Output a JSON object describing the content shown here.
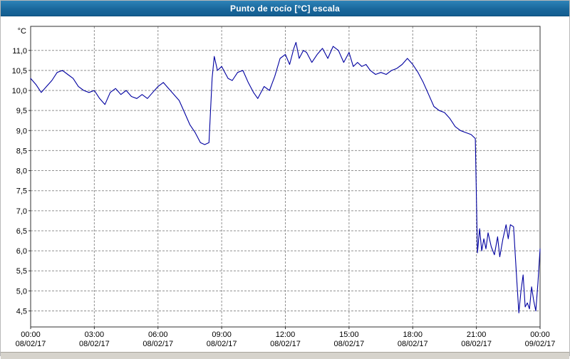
{
  "window": {
    "title": "Punto de rocío [°C] escala"
  },
  "colors": {
    "title_bar": "#1b6ca3",
    "title_text": "#ffffff",
    "line": "#0000a0",
    "grid": "#909090",
    "plot_border": "#303030",
    "background": "#ffffff",
    "scrollbar": "#d6d3cc"
  },
  "chart_data": {
    "type": "line",
    "title": "Punto de rocío [°C] escala",
    "ylabel": "°C",
    "xlabel": "",
    "grid": "dashed",
    "legend": "none",
    "ylim": [
      4.1,
      11.6
    ],
    "y_ticks": [
      4.5,
      5.0,
      5.5,
      6.0,
      6.5,
      7.0,
      7.5,
      8.0,
      8.5,
      9.0,
      9.5,
      10.0,
      10.5,
      11.0
    ],
    "y_tick_labels": [
      "4,5",
      "5,0",
      "5,5",
      "6,0",
      "6,5",
      "7,0",
      "7,5",
      "8,0",
      "8,5",
      "9,0",
      "9,5",
      "10,0",
      "10,5",
      "11,0"
    ],
    "x_ticks": [
      {
        "time": "00:00",
        "date": "08/02/17"
      },
      {
        "time": "03:00",
        "date": "08/02/17"
      },
      {
        "time": "06:00",
        "date": "08/02/17"
      },
      {
        "time": "09:00",
        "date": "08/02/17"
      },
      {
        "time": "12:00",
        "date": "08/02/17"
      },
      {
        "time": "15:00",
        "date": "08/02/17"
      },
      {
        "time": "18:00",
        "date": "08/02/17"
      },
      {
        "time": "21:00",
        "date": "08/02/17"
      },
      {
        "time": "00:00",
        "date": "09/02/17"
      }
    ],
    "series": [
      {
        "name": "Punto de rocío",
        "color": "#0000a0",
        "x": [
          0,
          0.25,
          0.5,
          0.75,
          1,
          1.25,
          1.5,
          1.75,
          2,
          2.25,
          2.5,
          2.75,
          3,
          3.25,
          3.5,
          3.75,
          4,
          4.25,
          4.5,
          4.75,
          5,
          5.25,
          5.5,
          5.75,
          6,
          6.25,
          6.5,
          6.75,
          7,
          7.25,
          7.5,
          7.75,
          8,
          8.2,
          8.4,
          8.55,
          8.65,
          8.8,
          9,
          9.15,
          9.3,
          9.5,
          9.75,
          10,
          10.25,
          10.5,
          10.7,
          11,
          11.25,
          11.5,
          11.75,
          12,
          12.2,
          12.4,
          12.5,
          12.65,
          12.85,
          13,
          13.25,
          13.5,
          13.75,
          14,
          14.25,
          14.5,
          14.75,
          15,
          15.2,
          15.4,
          15.6,
          15.8,
          16,
          16.25,
          16.5,
          16.75,
          17,
          17.25,
          17.5,
          17.75,
          18,
          18.25,
          18.5,
          18.75,
          19,
          19.25,
          19.5,
          19.75,
          20,
          20.25,
          20.5,
          20.75,
          20.95,
          21.05,
          21.15,
          21.25,
          21.35,
          21.45,
          21.55,
          21.7,
          21.85,
          22,
          22.1,
          22.25,
          22.4,
          22.5,
          22.6,
          22.75,
          22.9,
          23,
          23.1,
          23.2,
          23.3,
          23.4,
          23.5,
          23.6,
          23.7,
          23.8,
          23.9,
          24
        ],
        "values": [
          10.3,
          10.15,
          9.95,
          10.1,
          10.25,
          10.45,
          10.5,
          10.4,
          10.3,
          10.1,
          10,
          9.95,
          10,
          9.8,
          9.65,
          9.95,
          10.05,
          9.9,
          10,
          9.85,
          9.8,
          9.9,
          9.8,
          9.95,
          10.1,
          10.2,
          10.05,
          9.9,
          9.75,
          9.45,
          9.15,
          8.95,
          8.7,
          8.65,
          8.7,
          10.3,
          10.85,
          10.5,
          10.6,
          10.45,
          10.3,
          10.25,
          10.45,
          10.5,
          10.2,
          9.95,
          9.8,
          10.1,
          10,
          10.35,
          10.8,
          10.9,
          10.65,
          11.05,
          11.2,
          10.8,
          11,
          10.95,
          10.7,
          10.9,
          11.05,
          10.8,
          11.1,
          11,
          10.7,
          10.95,
          10.6,
          10.7,
          10.6,
          10.65,
          10.5,
          10.4,
          10.45,
          10.4,
          10.5,
          10.55,
          10.65,
          10.8,
          10.65,
          10.45,
          10.2,
          9.9,
          9.6,
          9.5,
          9.45,
          9.3,
          9.1,
          9,
          8.95,
          8.9,
          8.8,
          5.95,
          6.55,
          6,
          6.3,
          6.05,
          6.45,
          6.1,
          5.9,
          6.35,
          5.85,
          6.3,
          6.65,
          6.3,
          6.65,
          6.6,
          5.3,
          4.45,
          5,
          5.4,
          4.6,
          4.7,
          4.55,
          5.1,
          4.75,
          4.5,
          5.2,
          6.05
        ]
      }
    ]
  }
}
